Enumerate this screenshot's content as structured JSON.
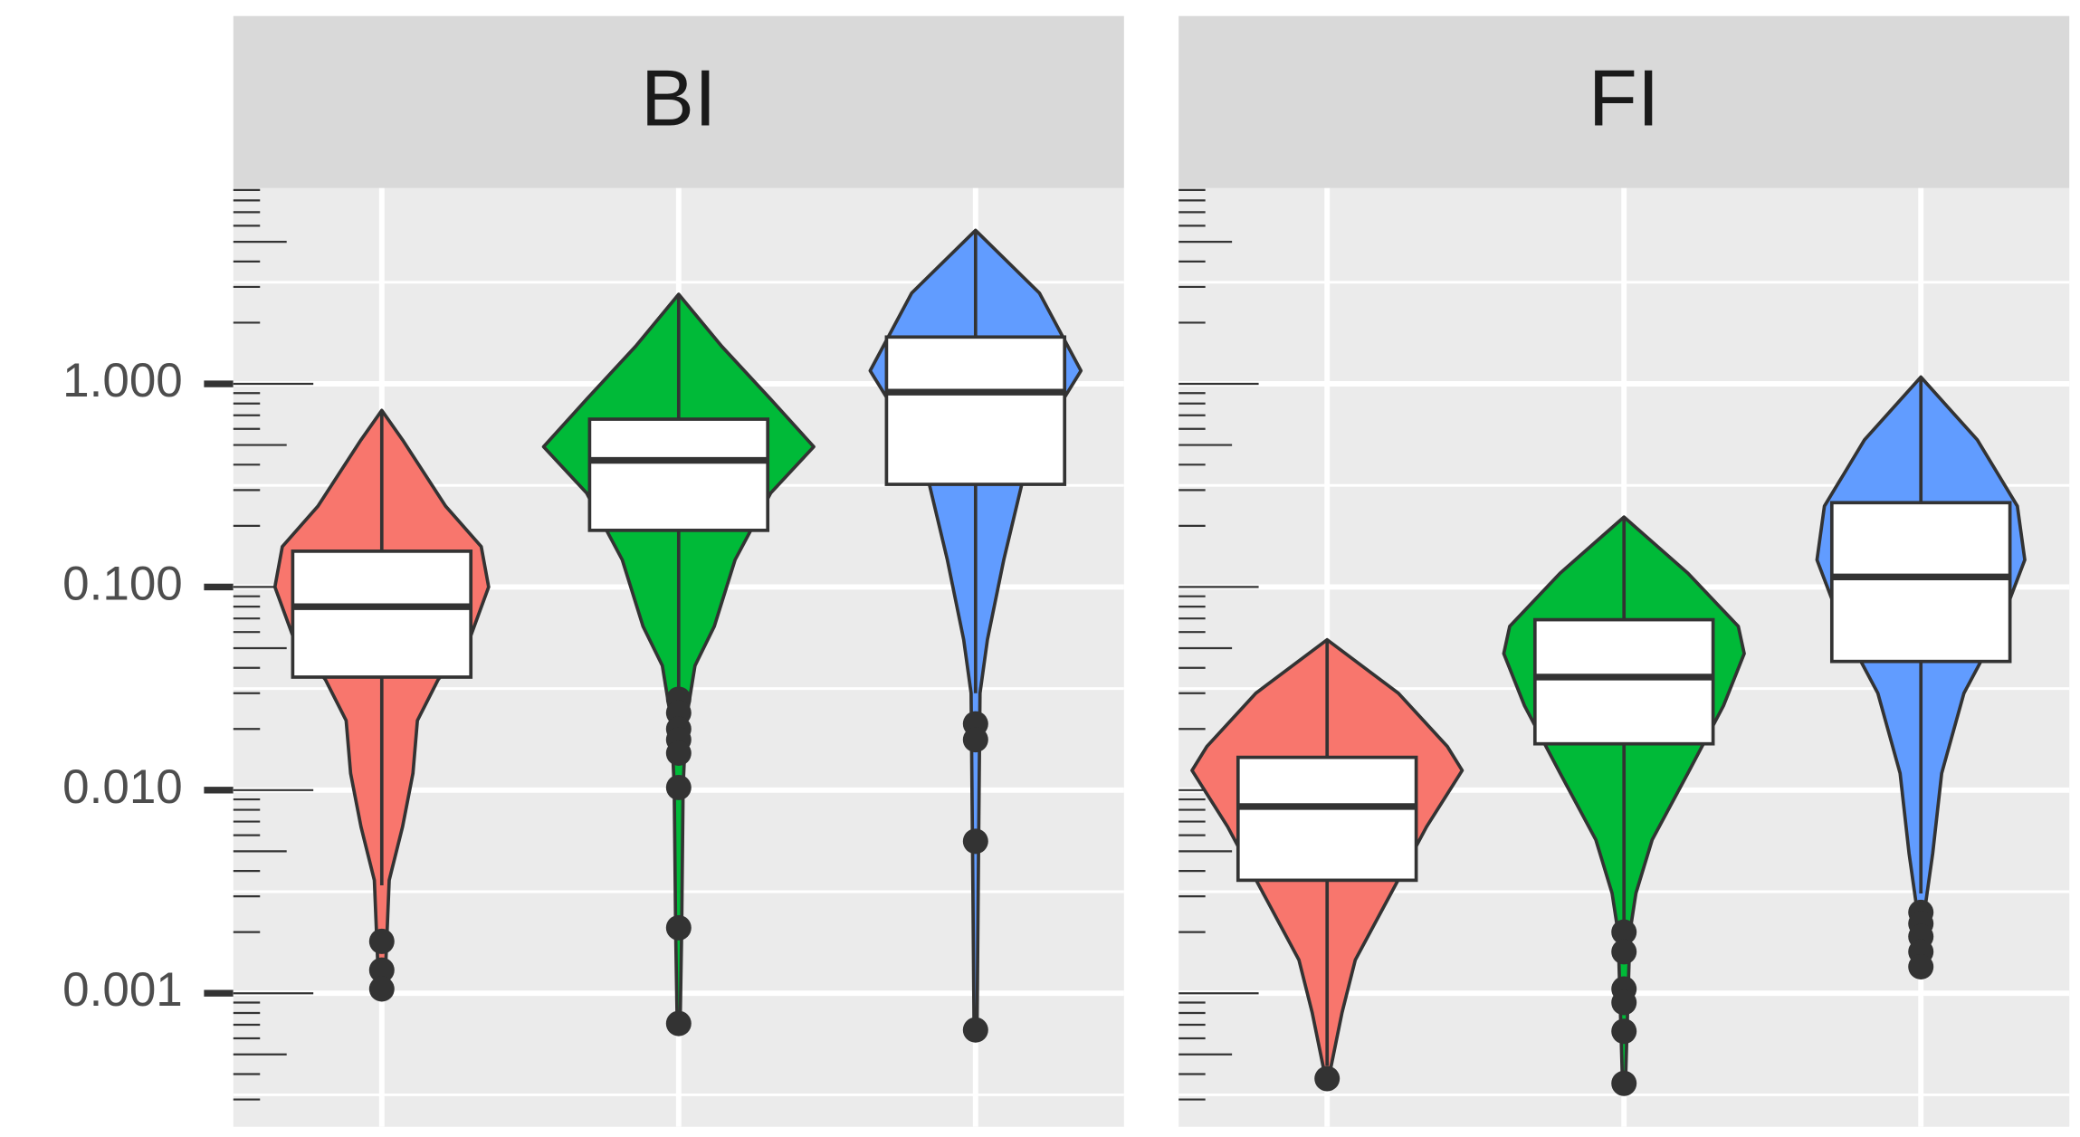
{
  "chart_data": {
    "type": "violin",
    "log": true,
    "grid": true,
    "logticks": true,
    "ylim": [
      0.00022,
      9.2
    ],
    "yticks": [
      {
        "value": 0.001,
        "label": "0.001"
      },
      {
        "value": 0.01,
        "label": "0.010"
      },
      {
        "value": 0.1,
        "label": "0.100"
      },
      {
        "value": 1,
        "label": "1.000"
      }
    ],
    "categories": [
      null,
      null,
      null
    ],
    "facets": [
      {
        "title": "BI",
        "series": [
          {
            "color": "#F8766D",
            "whisker_low": 0.0034,
            "q1": 0.036,
            "median": 0.08,
            "q3": 0.15,
            "whisker_high": 0.74,
            "outliers": [
              0.0018,
              0.0013,
              0.00105
            ],
            "density": {
              "y": [
                0.74,
                0.53,
                0.25,
                0.158,
                0.1,
                0.055,
                0.035,
                0.022,
                0.0121,
                0.0066,
                0.0036,
                0.00105
              ],
              "width": [
                0,
                0.14,
                0.43,
                0.67,
                0.72,
                0.59,
                0.38,
                0.24,
                0.21,
                0.14,
                0.05,
                0.02
              ]
            }
          },
          {
            "color": "#00BA38",
            "whisker_low": 0.031,
            "q1": 0.19,
            "median": 0.42,
            "q3": 0.67,
            "whisker_high": 2.76,
            "outliers": [
              0.028,
              0.024,
              0.02,
              0.0177,
              0.0152,
              0.0103,
              0.0021,
              0.00071
            ],
            "density": {
              "y": [
                2.76,
                1.53,
                0.84,
                0.49,
                0.29,
                0.136,
                0.064,
                0.041,
                0.022,
                0.0104,
                0.00197,
                0.00071
              ],
              "width": [
                0,
                0.29,
                0.62,
                0.91,
                0.62,
                0.38,
                0.24,
                0.11,
                0.05,
                0.03,
                0.02,
                0.01
              ]
            }
          },
          {
            "color": "#619CFF",
            "whisker_low": 0.03,
            "q1": 0.32,
            "median": 0.91,
            "q3": 1.7,
            "whisker_high": 5.7,
            "outliers": [
              0.0212,
              0.0177,
              0.0056,
              0.00066
            ],
            "density": {
              "y": [
                5.7,
                2.8,
                1.16,
                0.62,
                0.34,
                0.136,
                0.055,
                0.03,
                0.0049,
                0.00066
              ],
              "width": [
                0,
                0.43,
                0.71,
                0.48,
                0.32,
                0.19,
                0.08,
                0.03,
                0.02,
                0.01
              ]
            }
          }
        ]
      },
      {
        "title": "FI",
        "series": [
          {
            "color": "#F8766D",
            "whisker_low": 0.00044,
            "q1": 0.0036,
            "median": 0.0083,
            "q3": 0.0145,
            "whisker_high": 0.055,
            "outliers": [
              0.00038
            ],
            "density": {
              "y": [
                0.055,
                0.03,
                0.0164,
                0.0125,
                0.0066,
                0.0031,
                0.00146,
                0.0008,
                0.00038
              ],
              "width": [
                0,
                0.48,
                0.81,
                0.91,
                0.67,
                0.43,
                0.19,
                0.1,
                0.01
              ]
            }
          },
          {
            "color": "#00BA38",
            "whisker_low": 0.0023,
            "q1": 0.0169,
            "median": 0.036,
            "q3": 0.069,
            "whisker_high": 0.221,
            "outliers": [
              0.002,
              0.0016,
              0.00105,
              0.0009,
              0.00065,
              0.00036
            ],
            "density": {
              "y": [
                0.221,
                0.117,
                0.064,
                0.047,
                0.026,
                0.0121,
                0.0057,
                0.0031,
                0.002,
                0.00036
              ],
              "width": [
                0,
                0.43,
                0.77,
                0.81,
                0.67,
                0.43,
                0.19,
                0.08,
                0.04,
                0.01
              ]
            }
          },
          {
            "color": "#619CFF",
            "whisker_low": 0.0031,
            "q1": 0.043,
            "median": 0.112,
            "q3": 0.26,
            "whisker_high": 1.08,
            "outliers": [
              0.0025,
              0.0022,
              0.0019,
              0.0016,
              0.00135
            ],
            "density": {
              "y": [
                1.08,
                0.53,
                0.25,
                0.136,
                0.064,
                0.03,
                0.0121,
                0.0049,
                0.0027,
                0.00135
              ],
              "width": [
                0,
                0.38,
                0.65,
                0.7,
                0.53,
                0.29,
                0.14,
                0.08,
                0.03,
                0.01
              ]
            }
          }
        ]
      }
    ]
  }
}
